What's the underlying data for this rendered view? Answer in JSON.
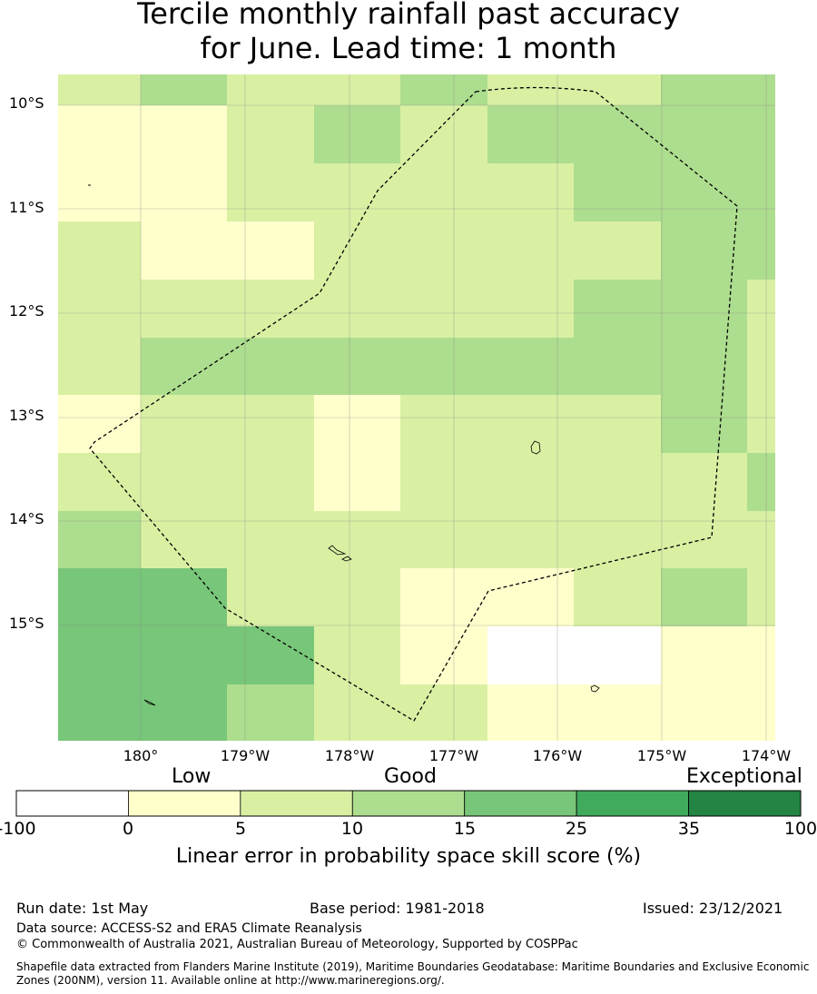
{
  "title": {
    "line1": "Tercile monthly rainfall past accuracy",
    "line2": "for June. Lead time: 1 month"
  },
  "axes": {
    "lat_labels": [
      "10°S",
      "11°S",
      "12°S",
      "13°S",
      "14°S",
      "15°S"
    ],
    "lon_labels": [
      "180°",
      "179°W",
      "178°W",
      "177°W",
      "176°W",
      "175°W",
      "174°W"
    ]
  },
  "colorbar": {
    "category_labels": [
      "Low",
      "Good",
      "Exceptional"
    ],
    "tick_labels": [
      "-100",
      "0",
      "5",
      "10",
      "15",
      "25",
      "35",
      "100"
    ],
    "bins": [
      {
        "from": -100,
        "to": 0,
        "color": "#ffffff"
      },
      {
        "from": 0,
        "to": 5,
        "color": "#ffffcc"
      },
      {
        "from": 5,
        "to": 10,
        "color": "#d9f0a3"
      },
      {
        "from": 10,
        "to": 15,
        "color": "#addd8e"
      },
      {
        "from": 15,
        "to": 25,
        "color": "#78c679"
      },
      {
        "from": 25,
        "to": 35,
        "color": "#41ab5d"
      },
      {
        "from": 35,
        "to": 100,
        "color": "#238443"
      }
    ],
    "title": "Linear error in probability space skill score (%)"
  },
  "grid_classes": [
    [
      2,
      3,
      2,
      2,
      3,
      2,
      2,
      3,
      3
    ],
    [
      1,
      1,
      2,
      3,
      2,
      3,
      3,
      3,
      3
    ],
    [
      1,
      1,
      2,
      2,
      2,
      2,
      3,
      3,
      3
    ],
    [
      2,
      1,
      1,
      2,
      2,
      2,
      2,
      3,
      3
    ],
    [
      2,
      2,
      2,
      2,
      2,
      2,
      3,
      3,
      2
    ],
    [
      2,
      3,
      3,
      3,
      3,
      3,
      3,
      3,
      2
    ],
    [
      1,
      2,
      2,
      1,
      2,
      2,
      2,
      3,
      2
    ],
    [
      2,
      2,
      2,
      1,
      2,
      2,
      2,
      2,
      3
    ],
    [
      3,
      2,
      2,
      2,
      2,
      2,
      2,
      2,
      2
    ],
    [
      4,
      4,
      2,
      2,
      1,
      1,
      2,
      3,
      2
    ],
    [
      4,
      4,
      4,
      2,
      1,
      0,
      0,
      1,
      1
    ],
    [
      4,
      4,
      3,
      2,
      2,
      1,
      1,
      1,
      1
    ]
  ],
  "footer": {
    "run_date": "Run date: 1st May",
    "base_period": "Base period: 1981-2018",
    "issued": "Issued: 23/12/2021",
    "data_source": "Data source: ACCESS-S2 and ERA5 Climate Reanalysis",
    "copyright": "© Commonwealth of Australia 2021, Australian Bureau of Meteorology, Supported by COSPPac",
    "shapefile": "Shapefile data extracted from Flanders Marine Institute (2019), Maritime Boundaries Geodatabase: Maritime Boundaries and Exclusive Economic Zones (200NM), version 11. Available online at http://www.marineregions.org/."
  }
}
